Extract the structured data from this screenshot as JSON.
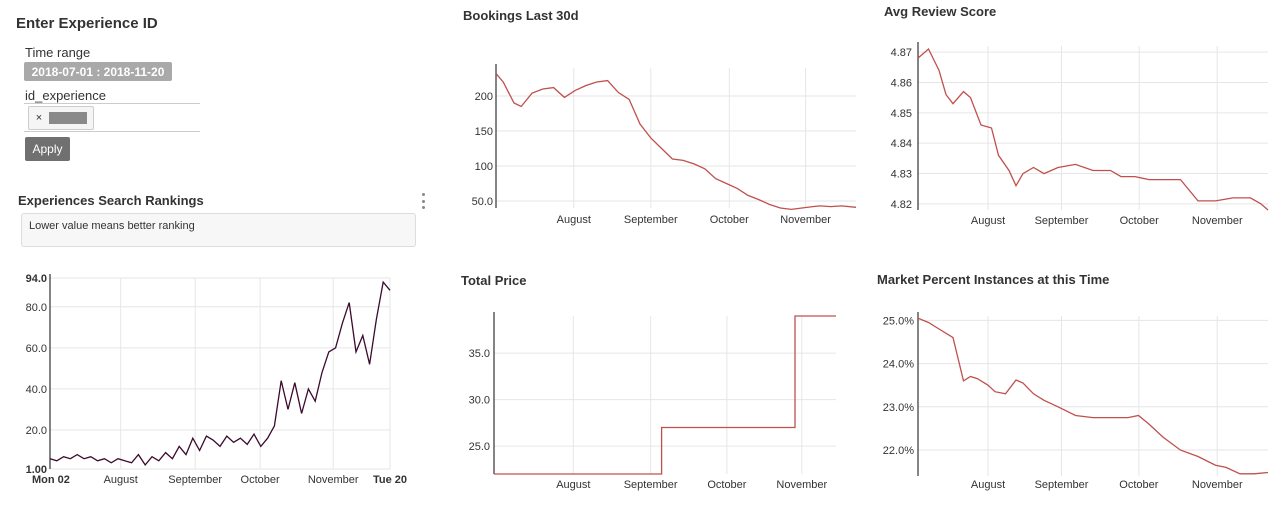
{
  "sidebar": {
    "title": "Enter Experience ID",
    "time_range_label": "Time range",
    "time_range_value": "2018-07-01 : 2018-11-20",
    "id_label": "id_experience",
    "chip_remove": "×",
    "apply_label": "Apply"
  },
  "rankings": {
    "title": "Experiences Search Rankings",
    "description": "Lower value means better ranking"
  },
  "colors": {
    "accent_line": "#c0504d",
    "ranking_line": "#3b0a2e",
    "grid": "#e6e6e6"
  },
  "chart_data": [
    {
      "id": "rankings",
      "type": "line",
      "title": "Experiences Search Rankings",
      "color": "#3b0a2e",
      "ylim": [
        1,
        94
      ],
      "yticks": [
        "94.0",
        "80.0",
        "60.0",
        "40.0",
        "20.0",
        "1.00"
      ],
      "ytick_values": [
        94,
        80,
        60,
        40,
        20,
        1
      ],
      "xticks": [
        "Mon 02",
        "August",
        "September",
        "October",
        "November",
        "Tue 20"
      ],
      "xtick_values": [
        0.0,
        0.208,
        0.427,
        0.618,
        0.833,
        1.0
      ],
      "x": [
        0,
        0.02,
        0.04,
        0.06,
        0.08,
        0.1,
        0.12,
        0.14,
        0.16,
        0.18,
        0.2,
        0.22,
        0.24,
        0.26,
        0.28,
        0.3,
        0.32,
        0.34,
        0.36,
        0.38,
        0.4,
        0.42,
        0.44,
        0.46,
        0.48,
        0.5,
        0.52,
        0.54,
        0.56,
        0.58,
        0.6,
        0.62,
        0.64,
        0.66,
        0.68,
        0.7,
        0.72,
        0.74,
        0.76,
        0.78,
        0.8,
        0.82,
        0.84,
        0.86,
        0.88,
        0.9,
        0.92,
        0.94,
        0.96,
        0.98,
        1.0
      ],
      "values": [
        6,
        5,
        7,
        6,
        8,
        6,
        7,
        5,
        6,
        4,
        6,
        5,
        4,
        8,
        3,
        7,
        5,
        9,
        6,
        12,
        8,
        16,
        10,
        17,
        15,
        12,
        17,
        14,
        16,
        13,
        18,
        12,
        16,
        22,
        44,
        30,
        43,
        28,
        40,
        34,
        48,
        58,
        60,
        72,
        82,
        58,
        66,
        52,
        74,
        92,
        88
      ]
    },
    {
      "id": "bookings",
      "type": "line",
      "title": "Bookings Last 30d",
      "color": "#c0504d",
      "ylim": [
        40,
        240
      ],
      "yticks": [
        "200",
        "150",
        "100",
        "50.0"
      ],
      "ytick_values": [
        200,
        150,
        100,
        50
      ],
      "xticks": [
        "August",
        "September",
        "October",
        "November"
      ],
      "xtick_values": [
        0.216,
        0.43,
        0.648,
        0.86
      ],
      "x": [
        0,
        0.02,
        0.05,
        0.07,
        0.1,
        0.13,
        0.16,
        0.19,
        0.22,
        0.25,
        0.28,
        0.31,
        0.34,
        0.37,
        0.4,
        0.43,
        0.46,
        0.49,
        0.52,
        0.55,
        0.58,
        0.61,
        0.64,
        0.67,
        0.7,
        0.73,
        0.76,
        0.79,
        0.82,
        0.85,
        0.88,
        0.9,
        0.93,
        0.96,
        1.0
      ],
      "values": [
        232,
        220,
        190,
        185,
        204,
        210,
        212,
        198,
        208,
        215,
        220,
        222,
        205,
        195,
        160,
        140,
        125,
        110,
        108,
        103,
        96,
        82,
        75,
        68,
        58,
        52,
        45,
        40,
        38,
        40,
        42,
        43,
        42,
        43,
        41
      ]
    },
    {
      "id": "review",
      "type": "line",
      "title": "Avg Review Score",
      "color": "#c0504d",
      "ylim": [
        4.818,
        4.872
      ],
      "yticks": [
        "4.87",
        "4.86",
        "4.85",
        "4.84",
        "4.83",
        "4.82"
      ],
      "ytick_values": [
        4.87,
        4.86,
        4.85,
        4.84,
        4.83,
        4.82
      ],
      "xticks": [
        "August",
        "September",
        "October",
        "November"
      ],
      "xtick_values": [
        0.2,
        0.41,
        0.632,
        0.855
      ],
      "x": [
        0,
        0.03,
        0.06,
        0.08,
        0.1,
        0.13,
        0.15,
        0.18,
        0.21,
        0.23,
        0.26,
        0.28,
        0.3,
        0.33,
        0.36,
        0.4,
        0.45,
        0.5,
        0.55,
        0.58,
        0.62,
        0.66,
        0.7,
        0.75,
        0.8,
        0.85,
        0.9,
        0.95,
        0.98,
        1.0
      ],
      "values": [
        4.868,
        4.871,
        4.864,
        4.856,
        4.853,
        4.857,
        4.855,
        4.846,
        4.845,
        4.836,
        4.831,
        4.826,
        4.83,
        4.832,
        4.83,
        4.832,
        4.833,
        4.831,
        4.831,
        4.829,
        4.829,
        4.828,
        4.828,
        4.828,
        4.821,
        4.821,
        4.822,
        4.822,
        4.82,
        4.818
      ]
    },
    {
      "id": "total-price",
      "type": "line",
      "title": "Total Price",
      "color": "#c0504d",
      "ylim": [
        22,
        39
      ],
      "yticks": [
        "35.0",
        "30.0",
        "25.0"
      ],
      "ytick_values": [
        35,
        30,
        25
      ],
      "xticks": [
        "August",
        "September",
        "October",
        "November"
      ],
      "xtick_values": [
        0.232,
        0.458,
        0.681,
        0.9
      ],
      "x": [
        0,
        0.49,
        0.49,
        0.88,
        0.88,
        1.0
      ],
      "values": [
        22,
        22,
        27,
        27,
        39,
        39
      ]
    },
    {
      "id": "market",
      "type": "line",
      "title": "Market Percent Instances at this Time",
      "color": "#c0504d",
      "ylim": [
        21.4,
        25.1
      ],
      "yticks": [
        "25.0%",
        "24.0%",
        "23.0%",
        "22.0%"
      ],
      "ytick_values": [
        25,
        24,
        23,
        22
      ],
      "xticks": [
        "August",
        "September",
        "October",
        "November"
      ],
      "xtick_values": [
        0.2,
        0.41,
        0.631,
        0.855
      ],
      "x": [
        0,
        0.03,
        0.06,
        0.1,
        0.13,
        0.15,
        0.17,
        0.2,
        0.22,
        0.25,
        0.28,
        0.3,
        0.33,
        0.36,
        0.4,
        0.45,
        0.5,
        0.55,
        0.6,
        0.63,
        0.66,
        0.7,
        0.75,
        0.8,
        0.85,
        0.88,
        0.92,
        0.96,
        1.0
      ],
      "values": [
        25.05,
        24.95,
        24.8,
        24.6,
        23.6,
        23.7,
        23.65,
        23.5,
        23.35,
        23.3,
        23.62,
        23.55,
        23.3,
        23.15,
        23.0,
        22.8,
        22.75,
        22.75,
        22.75,
        22.8,
        22.6,
        22.3,
        22.0,
        21.85,
        21.65,
        21.6,
        21.45,
        21.45,
        21.48
      ]
    }
  ]
}
